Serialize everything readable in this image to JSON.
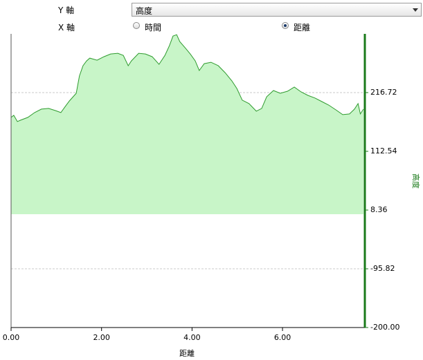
{
  "controls": {
    "y_axis_label": "Y 軸",
    "y_axis_select": "高度",
    "x_axis_label": "X 軸",
    "x_options": [
      "時間",
      "距離"
    ],
    "x_selected": 1
  },
  "chart_data": {
    "type": "area",
    "xlabel": "距離",
    "ylabel": "高度",
    "color": "#2e9b2e",
    "fill": "#c8f5c8",
    "axis_color": "#1a7a1a",
    "grid": true,
    "xlim": [
      0,
      7.82
    ],
    "xticks": [
      {
        "value": 0,
        "label": "0.00"
      },
      {
        "value": 2,
        "label": "2.00"
      },
      {
        "value": 4,
        "label": "4.00"
      },
      {
        "value": 6,
        "label": "6.00"
      }
    ],
    "ylim": [
      -200,
      320.9
    ],
    "yticks": [
      {
        "value": -200,
        "label": "-200.00"
      },
      -95.82,
      8.36,
      112.54,
      216.72
    ],
    "x": [
      0,
      0.06,
      0.14,
      0.21,
      0.37,
      0.52,
      0.67,
      0.83,
      0.98,
      1.1,
      1.21,
      1.29,
      1.44,
      1.51,
      1.59,
      1.67,
      1.74,
      1.9,
      2.05,
      2.2,
      2.36,
      2.48,
      2.59,
      2.66,
      2.82,
      2.97,
      3.12,
      3.27,
      3.4,
      3.5,
      3.58,
      3.66,
      3.73,
      3.86,
      3.96,
      4.07,
      4.16,
      4.27,
      4.42,
      4.58,
      4.73,
      4.88,
      4.99,
      5.11,
      5.26,
      5.42,
      5.54,
      5.65,
      5.8,
      5.95,
      6.11,
      6.26,
      6.41,
      6.56,
      6.72,
      6.87,
      7.02,
      7.18,
      7.33,
      7.48,
      7.59,
      7.67,
      7.72,
      7.79
    ],
    "values": [
      172.7,
      176.4,
      165.4,
      167.8,
      172.7,
      181.3,
      187.4,
      188.6,
      184.9,
      181.3,
      193.5,
      202.0,
      215.5,
      246.1,
      264.4,
      273.0,
      277.9,
      274.2,
      280.3,
      285.2,
      286.4,
      282.7,
      264.4,
      273.0,
      286.4,
      285.2,
      280.3,
      266.9,
      282.7,
      299.9,
      317.0,
      319.4,
      307.2,
      295.0,
      285.2,
      273.0,
      255.9,
      268.1,
      270.5,
      264.4,
      252.2,
      237.5,
      224.1,
      203.3,
      197.2,
      183.7,
      188.6,
      209.4,
      220.4,
      215.5,
      219.2,
      226.5,
      217.9,
      211.8,
      207.0,
      200.8,
      194.7,
      186.1,
      177.6,
      178.8,
      187.4,
      197.2,
      178.8,
      187.4
    ]
  }
}
